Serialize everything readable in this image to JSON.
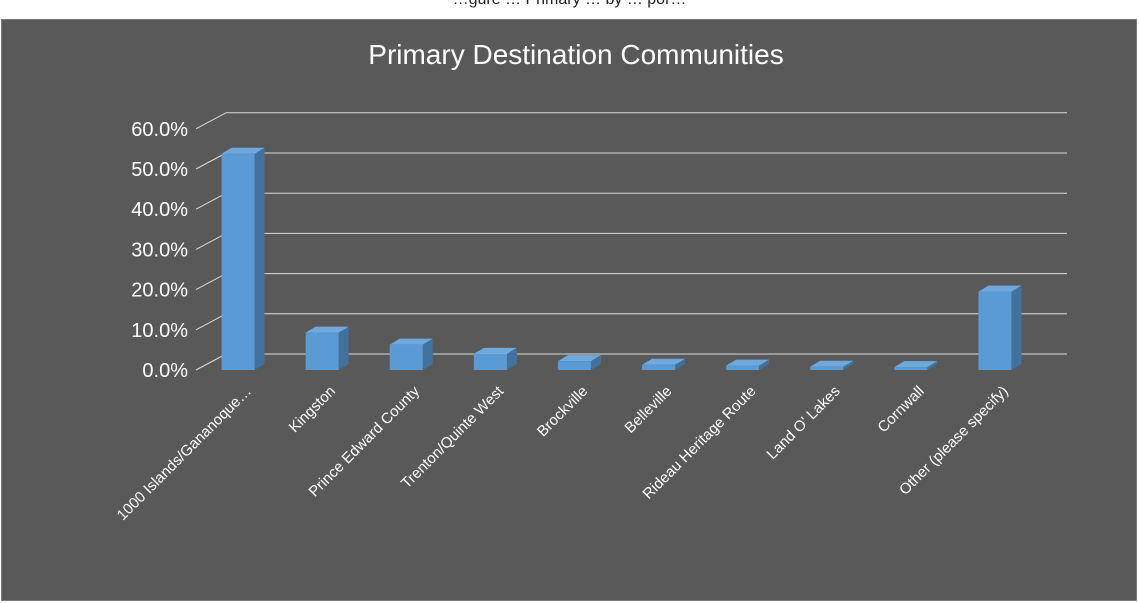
{
  "header": {
    "caption": "…gure … Primary … by … por…"
  },
  "chart_data": {
    "type": "bar",
    "title": "Primary Destination Communities",
    "categories": [
      "1000 Islands/Gananoque…",
      "Kingston",
      "Prince Edward County",
      "Trenton/Quinte West",
      "Brockville",
      "Belleville",
      "Rideau Heritage Route",
      "Land O' Lakes",
      "Cornwall",
      "Other (please specify)"
    ],
    "values": [
      53.8,
      9.3,
      6.3,
      4.0,
      2.2,
      1.3,
      1.1,
      0.8,
      0.7,
      19.5
    ],
    "yticks": [
      "0.0%",
      "10.0%",
      "20.0%",
      "30.0%",
      "40.0%",
      "50.0%",
      "60.0%"
    ],
    "ylim": [
      0,
      60
    ],
    "grid": true,
    "legend": "none",
    "colors": {
      "bar_front": "#5b9bd5",
      "bar_top": "#6fa8dc",
      "bar_side": "#41719c",
      "background": "#595959",
      "gridline": "#d9d9d9"
    }
  }
}
